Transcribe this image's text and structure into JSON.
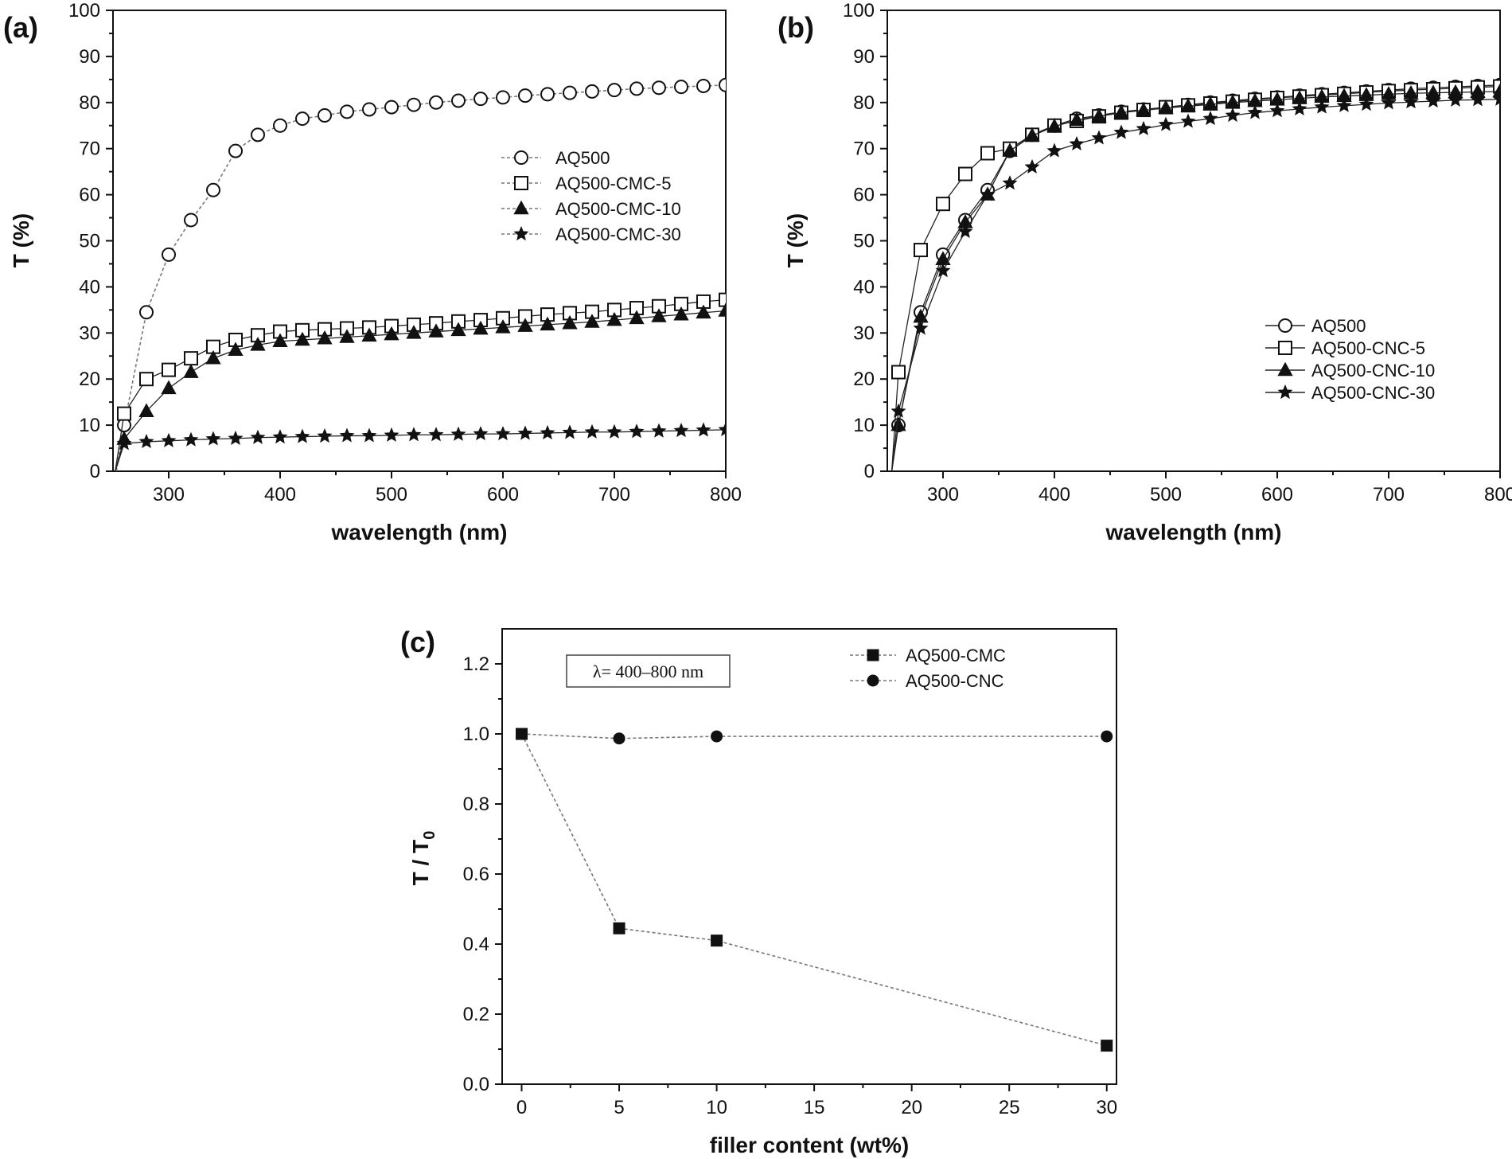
{
  "chart_data": [
    {
      "panel": "(a)",
      "type": "line",
      "xlabel": "wavelength (nm)",
      "ylabel": "T (%)",
      "xlim": [
        250,
        800
      ],
      "ylim": [
        0,
        100
      ],
      "xticks": [
        300,
        400,
        500,
        600,
        700,
        800
      ],
      "yticks": [
        0,
        10,
        20,
        30,
        40,
        50,
        60,
        70,
        80,
        90,
        100
      ],
      "legend_position": "middle-right",
      "series": [
        {
          "name": "AQ500",
          "marker": "open-circle",
          "x": [
            260,
            280,
            300,
            320,
            340,
            360,
            380,
            400,
            420,
            440,
            460,
            480,
            500,
            520,
            540,
            560,
            580,
            600,
            620,
            640,
            660,
            680,
            700,
            720,
            740,
            760,
            780,
            800
          ],
          "y": [
            10,
            34.5,
            47,
            54.5,
            61,
            69.5,
            73,
            75,
            76.5,
            77.2,
            78,
            78.5,
            79,
            79.5,
            80,
            80.4,
            80.8,
            81.1,
            81.5,
            81.8,
            82.1,
            82.4,
            82.7,
            83,
            83.2,
            83.4,
            83.6,
            83.8
          ]
        },
        {
          "name": "AQ500-CMC-5",
          "marker": "open-square",
          "x": [
            260,
            280,
            300,
            320,
            340,
            360,
            380,
            400,
            420,
            440,
            460,
            480,
            500,
            520,
            540,
            560,
            580,
            600,
            620,
            640,
            660,
            680,
            700,
            720,
            740,
            760,
            780,
            800
          ],
          "y": [
            12.5,
            20,
            22,
            24.5,
            27,
            28.5,
            29.5,
            30.3,
            30.6,
            30.8,
            31,
            31.2,
            31.5,
            31.8,
            32.1,
            32.5,
            32.8,
            33.2,
            33.6,
            34,
            34.3,
            34.6,
            35,
            35.4,
            35.8,
            36.3,
            36.8,
            37.2
          ]
        },
        {
          "name": "AQ500-CMC-10",
          "marker": "filled-triangle",
          "x": [
            260,
            280,
            300,
            320,
            340,
            360,
            380,
            400,
            420,
            440,
            460,
            480,
            500,
            520,
            540,
            560,
            580,
            600,
            620,
            640,
            660,
            680,
            700,
            720,
            740,
            760,
            780,
            800
          ],
          "y": [
            7,
            13,
            18,
            21.5,
            24.5,
            26.3,
            27.4,
            28.2,
            28.5,
            28.8,
            29.1,
            29.4,
            29.7,
            30,
            30.3,
            30.6,
            30.9,
            31.2,
            31.5,
            31.8,
            32.1,
            32.4,
            32.8,
            33.2,
            33.6,
            34,
            34.4,
            34.8
          ]
        },
        {
          "name": "AQ500-CMC-30",
          "marker": "filled-star",
          "x": [
            260,
            280,
            300,
            320,
            340,
            360,
            380,
            400,
            420,
            440,
            460,
            480,
            500,
            520,
            540,
            560,
            580,
            600,
            620,
            640,
            660,
            680,
            700,
            720,
            740,
            760,
            780,
            800
          ],
          "y": [
            6,
            6.4,
            6.6,
            6.8,
            7,
            7.1,
            7.3,
            7.4,
            7.5,
            7.6,
            7.7,
            7.7,
            7.8,
            7.9,
            7.9,
            8,
            8.1,
            8.1,
            8.2,
            8.3,
            8.4,
            8.5,
            8.5,
            8.6,
            8.7,
            8.8,
            8.9,
            9
          ]
        }
      ]
    },
    {
      "panel": "(b)",
      "type": "line",
      "xlabel": "wavelength (nm)",
      "ylabel": "T (%)",
      "xlim": [
        250,
        800
      ],
      "ylim": [
        0,
        100
      ],
      "xticks": [
        300,
        400,
        500,
        600,
        700,
        800
      ],
      "yticks": [
        0,
        10,
        20,
        30,
        40,
        50,
        60,
        70,
        80,
        90,
        100
      ],
      "legend_position": "bottom-right",
      "series": [
        {
          "name": "AQ500",
          "marker": "open-circle",
          "x": [
            260,
            280,
            300,
            320,
            340,
            360,
            380,
            400,
            420,
            440,
            460,
            480,
            500,
            520,
            540,
            560,
            580,
            600,
            620,
            640,
            660,
            680,
            700,
            720,
            740,
            760,
            780,
            800
          ],
          "y": [
            10,
            34.5,
            47,
            54.5,
            61,
            69.5,
            73,
            75,
            76.5,
            77.2,
            78,
            78.5,
            79,
            79.5,
            80,
            80.4,
            80.8,
            81.1,
            81.5,
            81.8,
            82.1,
            82.4,
            82.7,
            83,
            83.2,
            83.4,
            83.6,
            83.8
          ]
        },
        {
          "name": "AQ500-CNC-5",
          "marker": "open-square",
          "x": [
            260,
            280,
            300,
            320,
            340,
            360,
            380,
            400,
            420,
            440,
            460,
            480,
            500,
            520,
            540,
            560,
            580,
            600,
            620,
            640,
            660,
            680,
            700,
            720,
            740,
            760,
            780,
            800
          ],
          "y": [
            21.5,
            48,
            58,
            64.5,
            69,
            70,
            73,
            75,
            76,
            77,
            77.8,
            78.4,
            79,
            79.4,
            79.8,
            80.2,
            80.6,
            81,
            81.3,
            81.6,
            81.9,
            82.2,
            82.5,
            82.7,
            82.9,
            83.1,
            83.3,
            83.5
          ]
        },
        {
          "name": "AQ500-CNC-10",
          "marker": "filled-triangle",
          "x": [
            260,
            280,
            300,
            320,
            340,
            360,
            380,
            400,
            420,
            440,
            460,
            480,
            500,
            520,
            540,
            560,
            580,
            600,
            620,
            640,
            660,
            680,
            700,
            720,
            740,
            760,
            780,
            800
          ],
          "y": [
            10,
            33.5,
            46,
            54,
            60,
            69.5,
            72.8,
            74.8,
            76.2,
            77,
            77.8,
            78.3,
            78.8,
            79.2,
            79.6,
            80,
            80.3,
            80.6,
            80.9,
            81.2,
            81.4,
            81.6,
            81.8,
            82,
            82.1,
            82.2,
            82.3,
            82.4
          ]
        },
        {
          "name": "AQ500-CNC-30",
          "marker": "filled-star",
          "x": [
            260,
            280,
            300,
            320,
            340,
            360,
            380,
            400,
            420,
            440,
            460,
            480,
            500,
            520,
            540,
            560,
            580,
            600,
            620,
            640,
            660,
            680,
            700,
            720,
            740,
            760,
            780,
            800
          ],
          "y": [
            13,
            31,
            43.5,
            52,
            60,
            62.5,
            66,
            69.5,
            71,
            72.3,
            73.5,
            74.3,
            75.2,
            75.9,
            76.5,
            77.2,
            77.8,
            78.2,
            78.6,
            79,
            79.3,
            79.6,
            79.9,
            80.1,
            80.3,
            80.5,
            80.6,
            80.7
          ]
        }
      ]
    },
    {
      "panel": "(c)",
      "type": "line",
      "xlabel": "filler content (wt%)",
      "ylabel": "T / T",
      "ylabel_subscript": "0",
      "xlim": [
        -1,
        30.5
      ],
      "ylim": [
        0,
        1.3
      ],
      "xticks": [
        0,
        5,
        10,
        15,
        20,
        25,
        30
      ],
      "yticks": [
        0.0,
        0.2,
        0.4,
        0.6,
        0.8,
        1.0,
        1.2
      ],
      "ytick_labels": [
        "0.0",
        "0.2",
        "0.4",
        "0.6",
        "0.8",
        "1.0",
        "1.2"
      ],
      "annotation": "λ= 400–800 nm",
      "legend_position": "top-right",
      "series": [
        {
          "name": "AQ500-CMC",
          "marker": "filled-square",
          "x": [
            0,
            5,
            10,
            30
          ],
          "y": [
            1.0,
            0.445,
            0.41,
            0.11
          ]
        },
        {
          "name": "AQ500-CNC",
          "marker": "filled-circle",
          "x": [
            0,
            5,
            10,
            30
          ],
          "y": [
            1.0,
            0.987,
            0.993,
            0.993
          ]
        }
      ]
    }
  ]
}
